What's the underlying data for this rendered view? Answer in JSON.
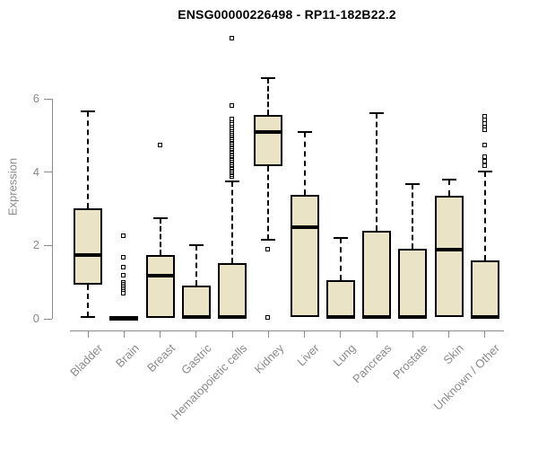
{
  "chart_data": {
    "type": "boxplot",
    "title": "ENSG00000226498 - RP11-182B22.2",
    "ylabel": "Expression",
    "ylim": [
      0,
      6
    ],
    "y_ticks": [
      0,
      2,
      4,
      6
    ],
    "grid": false,
    "legend": "none",
    "categories": [
      "Bladder",
      "Brain",
      "Breast",
      "Gastric",
      "Hematopoietic cells",
      "Kidney",
      "Liver",
      "Lung",
      "Pancreas",
      "Prostate",
      "Skin",
      "Unknown / Other"
    ],
    "series": [
      {
        "name": "Bladder",
        "whisker_low": 0.05,
        "q1": 0.93,
        "median": 1.75,
        "q3": 3.01,
        "whisker_high": 5.66,
        "outliers": []
      },
      {
        "name": "Brain",
        "whisker_low": 0.0,
        "q1": 0.02,
        "median": 0.03,
        "q3": 0.05,
        "whisker_high": 0.06,
        "outliers": [
          2.25,
          1.67,
          1.4,
          1.18,
          0.98,
          0.93,
          0.88,
          0.83,
          0.78,
          0.73,
          0.69
        ]
      },
      {
        "name": "Breast",
        "whisker_low": 0.02,
        "q1": 0.02,
        "median": 1.18,
        "q3": 1.74,
        "whisker_high": 2.74,
        "outliers": [
          4.73
        ]
      },
      {
        "name": "Gastric",
        "whisker_low": 0.02,
        "q1": 0.02,
        "median": 0.05,
        "q3": 0.91,
        "whisker_high": 2.01,
        "outliers": []
      },
      {
        "name": "Hematopoietic cells",
        "whisker_low": 0.02,
        "q1": 0.02,
        "median": 0.05,
        "q3": 1.52,
        "whisker_high": 3.75,
        "outliers": [
          3.87,
          3.92,
          3.96,
          4.0,
          4.04,
          4.08,
          4.12,
          4.16,
          4.2,
          4.24,
          4.28,
          4.32,
          4.36,
          4.4,
          4.44,
          4.48,
          4.52,
          4.56,
          4.6,
          4.64,
          4.68,
          4.72,
          4.76,
          4.8,
          4.84,
          4.88,
          4.92,
          4.96,
          5.0,
          5.05,
          5.1,
          5.15,
          5.2,
          5.26,
          5.32,
          5.38,
          5.44,
          5.8,
          7.64
        ]
      },
      {
        "name": "Kidney",
        "whisker_low": 2.16,
        "q1": 4.16,
        "median": 5.1,
        "q3": 5.56,
        "whisker_high": 6.57,
        "outliers": [
          1.89,
          0.02
        ]
      },
      {
        "name": "Liver",
        "whisker_low": 0.05,
        "q1": 0.05,
        "median": 2.5,
        "q3": 3.38,
        "whisker_high": 5.1,
        "outliers": []
      },
      {
        "name": "Lung",
        "whisker_low": 0.02,
        "q1": 0.02,
        "median": 0.05,
        "q3": 1.05,
        "whisker_high": 2.2,
        "outliers": []
      },
      {
        "name": "Pancreas",
        "whisker_low": 0.02,
        "q1": 0.02,
        "median": 0.05,
        "q3": 2.4,
        "whisker_high": 5.61,
        "outliers": []
      },
      {
        "name": "Prostate",
        "whisker_low": 0.02,
        "q1": 0.02,
        "median": 0.05,
        "q3": 1.91,
        "whisker_high": 3.67,
        "outliers": []
      },
      {
        "name": "Skin",
        "whisker_low": 0.05,
        "q1": 0.05,
        "median": 1.89,
        "q3": 3.36,
        "whisker_high": 3.8,
        "outliers": []
      },
      {
        "name": "Unknown / Other",
        "whisker_low": 0.02,
        "q1": 0.02,
        "median": 0.05,
        "q3": 1.59,
        "whisker_high": 4.02,
        "outliers": [
          5.51,
          5.41,
          5.31,
          5.22,
          5.14,
          4.73,
          4.41,
          4.29,
          4.16
        ]
      }
    ],
    "colors": {
      "box_fill": "#ebe3c6",
      "box_border": "#000000",
      "median": "#000000",
      "whisker": "#000000",
      "outlier": "#000000",
      "axis": "#8a8a8a",
      "tick_label": "#8a8a8a",
      "title": "#000000",
      "background": "#ffffff"
    }
  }
}
